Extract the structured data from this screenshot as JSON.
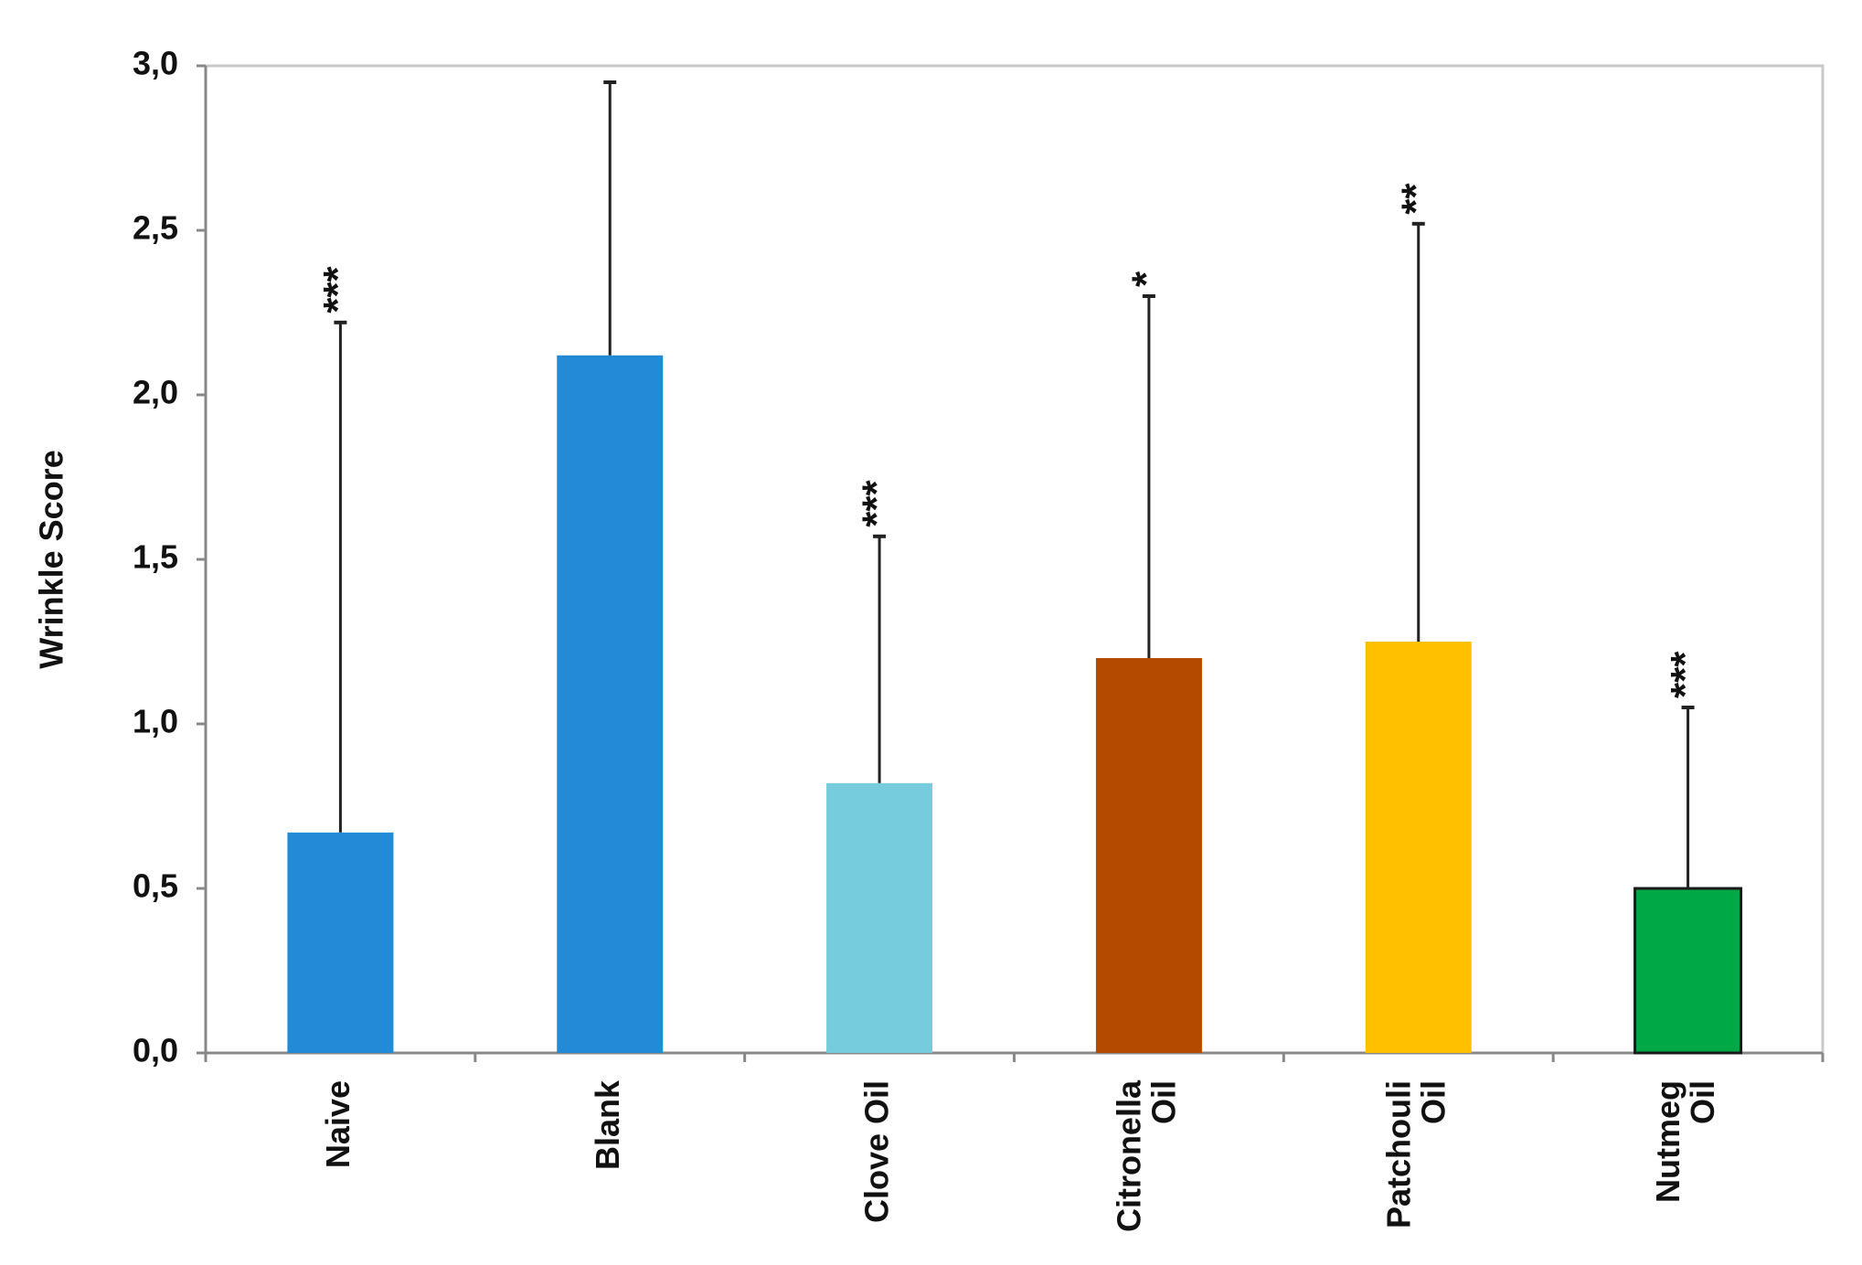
{
  "chart_data": {
    "type": "bar",
    "y_label": "Wrinkle Score",
    "categories": [
      [
        "Naive"
      ],
      [
        "Blank"
      ],
      [
        "Clove Oil"
      ],
      [
        "Citronella",
        "Oil"
      ],
      [
        "Patchouli",
        "Oil"
      ],
      [
        "Nutmeg",
        "Oil"
      ]
    ],
    "values": [
      0.67,
      2.12,
      0.82,
      1.2,
      1.25,
      0.5
    ],
    "errors": [
      1.55,
      0.83,
      0.75,
      1.1,
      1.27,
      0.55
    ],
    "colors": [
      "#218bd8",
      "#218bd8",
      "#76ccdc",
      "#b24a00",
      "#ffc000",
      "#00a846"
    ],
    "annotations": [
      "***",
      null,
      "***",
      "*",
      "**",
      "***"
    ],
    "ylim": [
      0,
      3
    ],
    "yticks": [
      {
        "value": 0,
        "label": "0,0"
      },
      {
        "value": 0.5,
        "label": "0,5"
      },
      {
        "value": 1,
        "label": "1,0"
      },
      {
        "value": 1.5,
        "label": "1,5"
      },
      {
        "value": 2,
        "label": "2,0"
      },
      {
        "value": 2.5,
        "label": "2,5"
      },
      {
        "value": 3,
        "label": "3,0"
      }
    ]
  }
}
